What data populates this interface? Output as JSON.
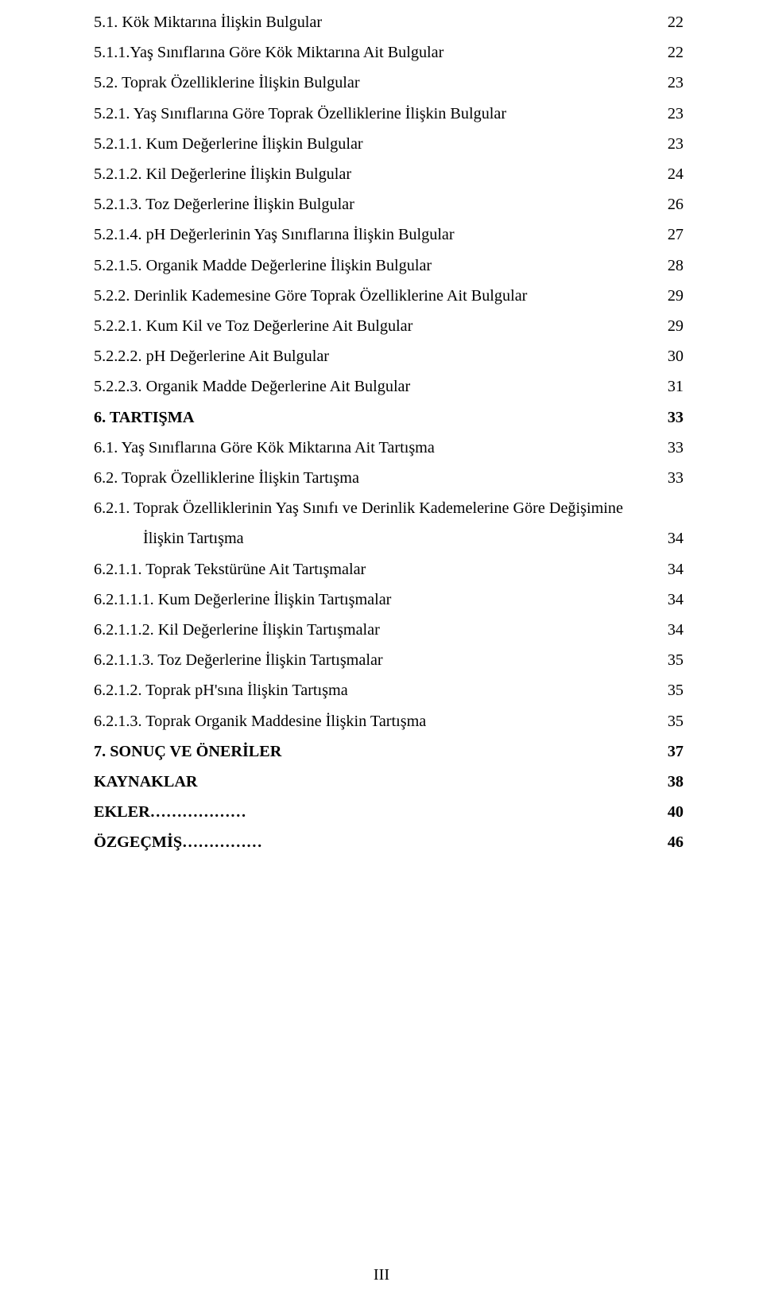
{
  "toc": [
    {
      "label": "5.1. Kök Miktarına İlişkin Bulgular",
      "page": "22"
    },
    {
      "label": "5.1.1.Yaş Sınıflarına Göre Kök Miktarına Ait Bulgular",
      "page": "22"
    },
    {
      "label": "5.2. Toprak Özelliklerine İlişkin Bulgular",
      "page": "23"
    },
    {
      "label": "5.2.1. Yaş Sınıflarına Göre Toprak Özelliklerine İlişkin Bulgular",
      "page": "23"
    },
    {
      "label": "5.2.1.1. Kum Değerlerine İlişkin Bulgular",
      "page": "23"
    },
    {
      "label": "5.2.1.2. Kil Değerlerine İlişkin Bulgular",
      "page": "24"
    },
    {
      "label": "5.2.1.3. Toz Değerlerine İlişkin Bulgular",
      "page": "26"
    },
    {
      "label": "5.2.1.4. pH Değerlerinin Yaş Sınıflarına İlişkin Bulgular",
      "page": "27"
    },
    {
      "label": "5.2.1.5. Organik Madde Değerlerine İlişkin Bulgular",
      "page": "28"
    },
    {
      "label": "5.2.2. Derinlik Kademesine Göre Toprak Özelliklerine Ait Bulgular",
      "page": "29"
    },
    {
      "label": "5.2.2.1. Kum Kil ve Toz Değerlerine Ait Bulgular",
      "page": "29"
    },
    {
      "label": "5.2.2.2. pH Değerlerine Ait Bulgular",
      "page": "30"
    },
    {
      "label": "5.2.2.3. Organik Madde Değerlerine Ait Bulgular",
      "page": "31"
    },
    {
      "label": "6.  TARTIŞMA",
      "page": "33",
      "bold": true
    },
    {
      "label": "6.1. Yaş Sınıflarına Göre Kök Miktarına Ait Tartışma",
      "page": "33"
    },
    {
      "label": "6.2. Toprak Özelliklerine İlişkin Tartışma",
      "page": "33"
    },
    {
      "label_line1": "6.2.1. Toprak Özelliklerinin Yaş Sınıfı ve Derinlik Kademelerine Göre Değişimine",
      "label_line2": "İlişkin Tartışma",
      "page": "34",
      "wrap": true
    },
    {
      "label": "6.2.1.1. Toprak Tekstürüne Ait Tartışmalar",
      "page": "34"
    },
    {
      "label": "6.2.1.1.1. Kum Değerlerine İlişkin Tartışmalar",
      "page": "34"
    },
    {
      "label": "6.2.1.1.2. Kil Değerlerine İlişkin Tartışmalar",
      "page": "34"
    },
    {
      "label": "6.2.1.1.3. Toz Değerlerine İlişkin Tartışmalar",
      "page": "35"
    },
    {
      "label": "6.2.1.2. Toprak pH'sına İlişkin Tartışma",
      "page": "35"
    },
    {
      "label": "6.2.1.3. Toprak Organik Maddesine İlişkin Tartışma",
      "page": "35"
    },
    {
      "label": "7. SONUÇ VE ÖNERİLER",
      "page": "37",
      "bold": true
    },
    {
      "label": "KAYNAKLAR",
      "page": "38",
      "bold": true
    },
    {
      "label": "EKLER………………",
      "page": "40",
      "bold": true
    },
    {
      "label": "ÖZGEÇMİŞ……………",
      "page": "46",
      "bold": true
    }
  ],
  "pageNumber": "III",
  "colors": {
    "background": "#ffffff",
    "text": "#000000"
  },
  "typography": {
    "fontFamily": "Times New Roman",
    "fontSize": 20.2,
    "lineSpacing": 18.0
  }
}
